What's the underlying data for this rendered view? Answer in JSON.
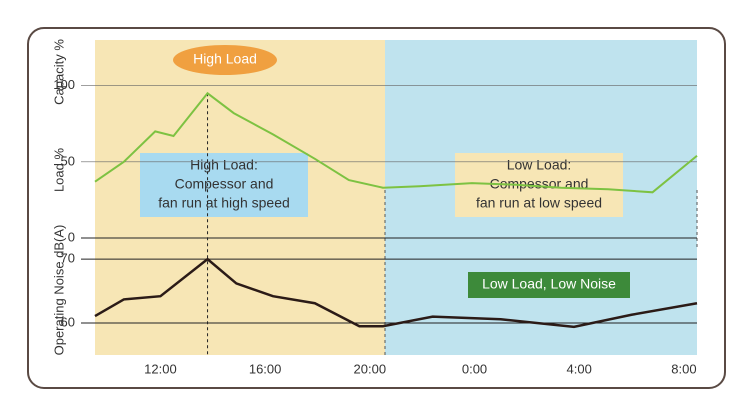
{
  "chart_data": [
    {
      "type": "line",
      "y_label": "Capacity %",
      "y_label2": "Load %",
      "x": [
        9.5,
        10.6,
        11.8,
        12.5,
        13.8,
        14.8,
        16.3,
        17.9,
        19.2,
        20.5,
        21.9,
        23.9,
        25.6,
        27.3,
        29.1,
        30.8,
        32.5
      ],
      "series": [
        {
          "name": "Load",
          "color": "#7dc242",
          "values": [
            37,
            50,
            70,
            67,
            95,
            82,
            68,
            52,
            38,
            33,
            34,
            36,
            35,
            33,
            32,
            30,
            54
          ]
        }
      ],
      "xlim": [
        9.5,
        32.5
      ],
      "ylim": [
        0,
        130
      ],
      "yticks": [
        0,
        50,
        100
      ],
      "annotations": [
        [
          "High Load"
        ],
        [
          "High Load:",
          "Compessor and",
          "fan run at high speed"
        ],
        [
          "Low Load:",
          "Compessor and",
          "fan run at low speed"
        ]
      ]
    },
    {
      "type": "line",
      "y_label": "Operating Noise dB(A)",
      "x": [
        9.5,
        10.6,
        12,
        13.8,
        14.9,
        16.3,
        17.9,
        19.6,
        20.5,
        22.4,
        25,
        27.8,
        30,
        32.5
      ],
      "series": [
        {
          "name": "Noise",
          "color": "#2b1b17",
          "values": [
            61.1,
            63.7,
            64.2,
            70,
            66.2,
            64.2,
            63.1,
            59.5,
            59.5,
            61,
            60.6,
            59.4,
            61.3,
            63.1
          ]
        }
      ],
      "xlim": [
        9.5,
        32.5
      ],
      "ylim": [
        55,
        73
      ],
      "yticks": [
        60,
        70
      ],
      "xticks": [
        {
          "value": 12,
          "label": "12:00"
        },
        {
          "value": 16,
          "label": "16:00"
        },
        {
          "value": 20,
          "label": "20:00"
        },
        {
          "value": 24,
          "label": "0:00"
        },
        {
          "value": 28,
          "label": "4:00"
        },
        {
          "value": 32,
          "label": "8:00"
        }
      ],
      "annotations": [
        [
          "Low Load, Low Noise"
        ]
      ]
    }
  ]
}
